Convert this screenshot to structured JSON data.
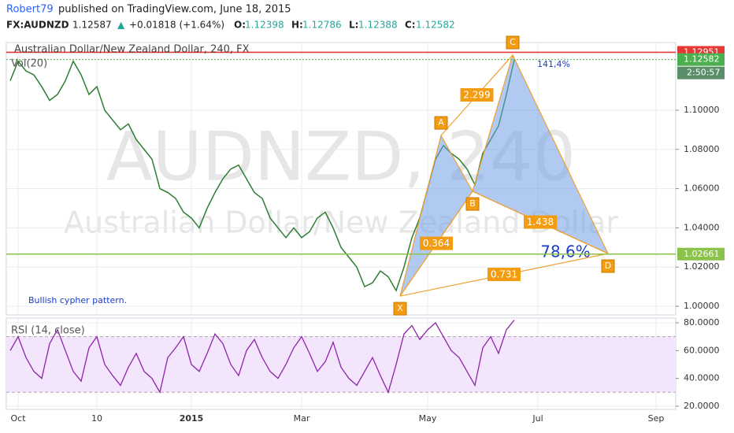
{
  "header": {
    "author": "Robert79",
    "published": "published on TradingView.com, June 18, 2015",
    "symbol": "FX:AUDNZD",
    "last": "1.12587",
    "arrow": "▲",
    "change": "+0.01818 (+1.64%)",
    "open_label": "O:",
    "open": "1.12398",
    "high_label": "H:",
    "high": "1.12786",
    "low_label": "L:",
    "low": "1.12388",
    "close_label": "C:",
    "close": "1.12582"
  },
  "chart_data": [
    {
      "type": "line",
      "title": "Australian Dollar/New Zealand Dollar, 240, FX",
      "subtitle": "Vol(20)",
      "watermark": "AUDNZD, 240",
      "watermark_subtitle": "Australian Dollar/New Zealand Dollar",
      "annotation": "Bullish cypher pattern.",
      "color": "#2e7d32",
      "categories": [
        null,
        "Oct",
        null,
        null,
        null,
        null,
        null,
        null,
        null,
        null,
        null,
        "10",
        null,
        null,
        null,
        null,
        null,
        null,
        null,
        null,
        null,
        null,
        null,
        "2015",
        null,
        null,
        null,
        null,
        null,
        null,
        null,
        null,
        null,
        null,
        null,
        null,
        null,
        "Mar",
        null,
        null,
        null,
        null,
        null,
        null,
        null,
        null,
        null,
        null,
        null,
        null,
        null,
        null,
        null,
        "May",
        null,
        null,
        null,
        null,
        null,
        null,
        null,
        null,
        null,
        null,
        null,
        null,
        null,
        "Jul",
        null,
        null,
        null,
        null,
        null,
        null,
        null,
        null,
        null,
        null,
        null,
        null,
        null,
        null,
        "Sep",
        null,
        null,
        null
      ],
      "values": [
        1.115,
        1.125,
        1.12,
        1.118,
        1.112,
        1.105,
        1.108,
        1.115,
        1.125,
        1.118,
        1.108,
        1.112,
        1.1,
        1.095,
        1.09,
        1.093,
        1.085,
        1.08,
        1.075,
        1.06,
        1.058,
        1.055,
        1.048,
        1.045,
        1.04,
        1.05,
        1.058,
        1.065,
        1.07,
        1.072,
        1.065,
        1.058,
        1.055,
        1.045,
        1.04,
        1.035,
        1.04,
        1.035,
        1.038,
        1.045,
        1.048,
        1.04,
        1.03,
        1.025,
        1.02,
        1.01,
        1.012,
        1.018,
        1.015,
        1.008,
        1.02,
        1.035,
        1.045,
        1.06,
        1.075,
        1.082,
        1.078,
        1.075,
        1.07,
        1.062,
        1.078,
        1.085,
        1.092,
        1.108,
        1.1258,
        null,
        null,
        null,
        null,
        null,
        null,
        null,
        null,
        null,
        null,
        null,
        null,
        null,
        null,
        null,
        null,
        null,
        null,
        null,
        null,
        null
      ],
      "ylim": [
        0.9956,
        1.1313
      ],
      "yticks": [
        {
          "value": 1.0,
          "label": "1.00000"
        },
        {
          "value": 1.02,
          "label": "1.02000"
        },
        {
          "value": 1.04,
          "label": "1.04000"
        },
        {
          "value": 1.06,
          "label": "1.06000"
        },
        {
          "value": 1.08,
          "label": "1.08000"
        },
        {
          "value": 1.1,
          "label": "1.10000"
        }
      ],
      "grid": true,
      "levels": [
        {
          "value": 1.12951,
          "label": "1.12951",
          "color": "#e53935",
          "style": "solid"
        },
        {
          "value": 1.12582,
          "label": "1.12582",
          "color": "#4caf50",
          "style": "dotted"
        },
        {
          "value": 1.02661,
          "label": "1.02661",
          "color": "#8bc34a",
          "style": "solid"
        }
      ],
      "countdown": "2:50:57",
      "pattern": {
        "fill": "#6f9fe8",
        "line_color": "#f0a030",
        "points": [
          {
            "label": "X",
            "x": 49.5,
            "value": 1.0052
          },
          {
            "label": "A",
            "x": 54.7,
            "value": 1.0871
          },
          {
            "label": "B",
            "x": 58.7,
            "value": 1.0586
          },
          {
            "label": "C",
            "x": 63.8,
            "value": 1.1281
          },
          {
            "label": "D",
            "x": 75.9,
            "value": 1.0269
          }
        ],
        "ratios": [
          "2.299",
          "0.364",
          "1.438",
          "0.731"
        ],
        "retracement": "78,6%",
        "extension": "141,4%"
      }
    },
    {
      "type": "line",
      "title": "RSI (14, close)",
      "color": "#8e24aa",
      "band": [
        30,
        70
      ],
      "values": [
        60,
        70,
        55,
        45,
        40,
        65,
        75,
        60,
        45,
        38,
        62,
        70,
        50,
        42,
        35,
        48,
        58,
        45,
        40,
        30,
        55,
        62,
        70,
        50,
        45,
        58,
        72,
        65,
        50,
        42,
        60,
        68,
        55,
        45,
        40,
        50,
        62,
        70,
        58,
        45,
        52,
        66,
        48,
        40,
        35,
        45,
        55,
        42,
        30,
        50,
        72,
        78,
        68,
        75,
        80,
        70,
        60,
        55,
        45,
        35,
        62,
        70,
        58,
        75,
        82
      ],
      "ylim": [
        17.7,
        83.4
      ],
      "yticks": [
        {
          "value": 20,
          "label": "20.0000"
        },
        {
          "value": 40,
          "label": "40.0000"
        },
        {
          "value": 60,
          "label": "60.0000"
        },
        {
          "value": 80,
          "label": "80.0000"
        }
      ]
    }
  ]
}
